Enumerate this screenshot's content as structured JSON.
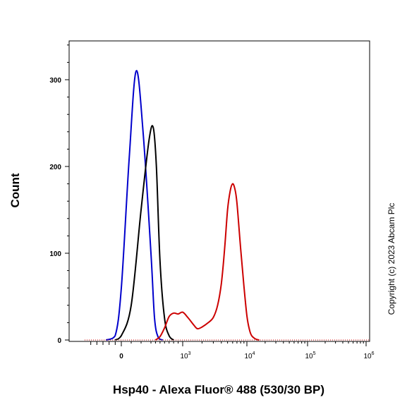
{
  "chart_data": {
    "type": "line",
    "xlabel": "Hsp40 - Alexa Fluor® 488 (530/30 BP)",
    "ylabel": "Count",
    "x_scale": "biexponential (log above 10^3)",
    "xlim": [
      -600,
      1000000
    ],
    "ylim": [
      0,
      340
    ],
    "y_ticks": [
      {
        "value": 0,
        "label": "0"
      },
      {
        "value": 100,
        "label": "100"
      },
      {
        "value": 200,
        "label": "200"
      },
      {
        "value": 300,
        "label": "300"
      }
    ],
    "x_ticks": [
      {
        "value": 0,
        "label": "0",
        "base": "",
        "exp": ""
      },
      {
        "value": 1000,
        "label": "",
        "base": "10",
        "exp": "3"
      },
      {
        "value": 10000,
        "label": "",
        "base": "10",
        "exp": "4"
      },
      {
        "value": 100000,
        "label": "",
        "base": "10",
        "exp": "5"
      },
      {
        "value": 1000000,
        "label": "",
        "base": "10",
        "exp": "6"
      }
    ],
    "grid": false,
    "legend": null,
    "series": [
      {
        "color": "#0000cc",
        "x": [
          -250,
          -100,
          0,
          80,
          150,
          220,
          300,
          380,
          460,
          560
        ],
        "y": [
          0,
          5,
          60,
          210,
          310,
          240,
          100,
          25,
          3,
          0
        ]
      },
      {
        "color": "#000000",
        "x": [
          -100,
          0,
          100,
          200,
          280,
          350,
          420,
          500,
          600,
          700,
          800
        ],
        "y": [
          0,
          5,
          40,
          150,
          230,
          245,
          200,
          90,
          25,
          5,
          0
        ]
      },
      {
        "color": "#cc0000",
        "x": [
          400,
          500,
          600,
          700,
          800,
          900,
          1000,
          1200,
          1500,
          1700,
          2000,
          2500,
          3000,
          3500,
          4000,
          4500,
          5000,
          5500,
          6000,
          6500,
          7000,
          8000,
          9000,
          10000,
          11000,
          12000,
          14000,
          16000
        ],
        "y": [
          0,
          4,
          14,
          27,
          31,
          30,
          32,
          26,
          17,
          13,
          15,
          20,
          26,
          40,
          65,
          105,
          150,
          172,
          180,
          174,
          158,
          105,
          62,
          28,
          12,
          5,
          1,
          0
        ]
      }
    ]
  },
  "watermark": {
    "text": "Copyright (c) 2023 Abcam Plc"
  }
}
